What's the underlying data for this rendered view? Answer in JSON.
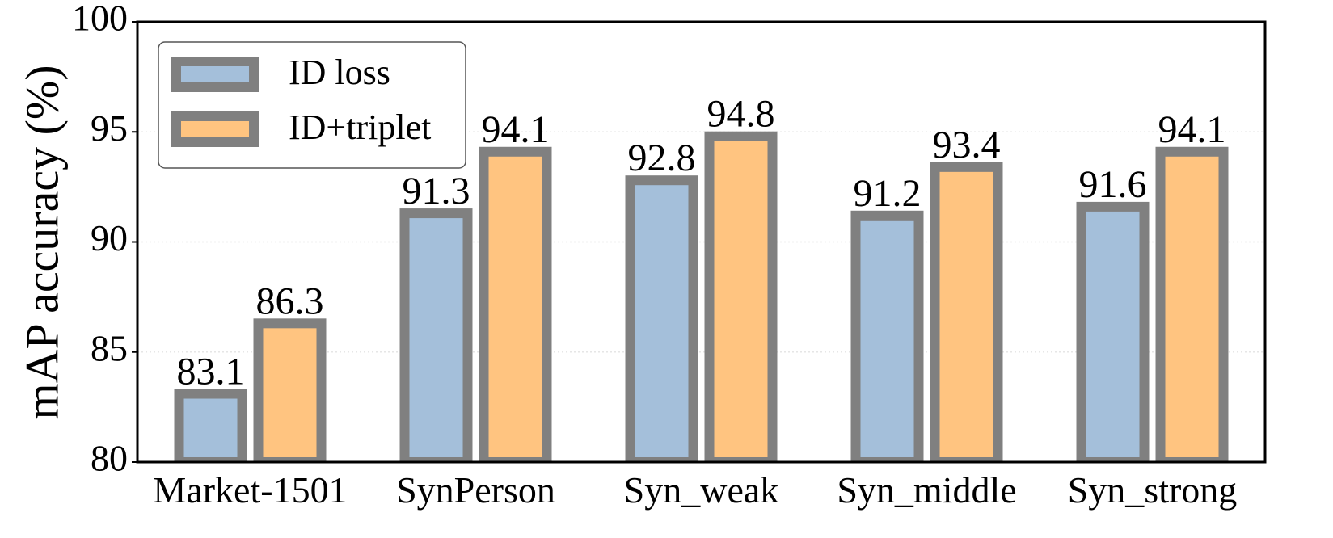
{
  "chart_data": {
    "type": "bar",
    "ylabel": "mAP accuracy (%)",
    "categories": [
      "Market-1501",
      "SynPerson",
      "Syn_weak",
      "Syn_middle",
      "Syn_strong"
    ],
    "series": [
      {
        "name": "ID loss",
        "color": "#a4bfda",
        "values": [
          83.1,
          91.3,
          92.8,
          91.2,
          91.6
        ]
      },
      {
        "name": "ID+triplet",
        "color": "#ffc480",
        "values": [
          86.3,
          94.1,
          94.8,
          93.4,
          94.1
        ]
      }
    ],
    "edgecolor": "#808080",
    "ylim": [
      80,
      100
    ],
    "yticks": [
      80,
      85,
      90,
      95,
      100
    ],
    "grid": true,
    "legend": "upper left"
  }
}
